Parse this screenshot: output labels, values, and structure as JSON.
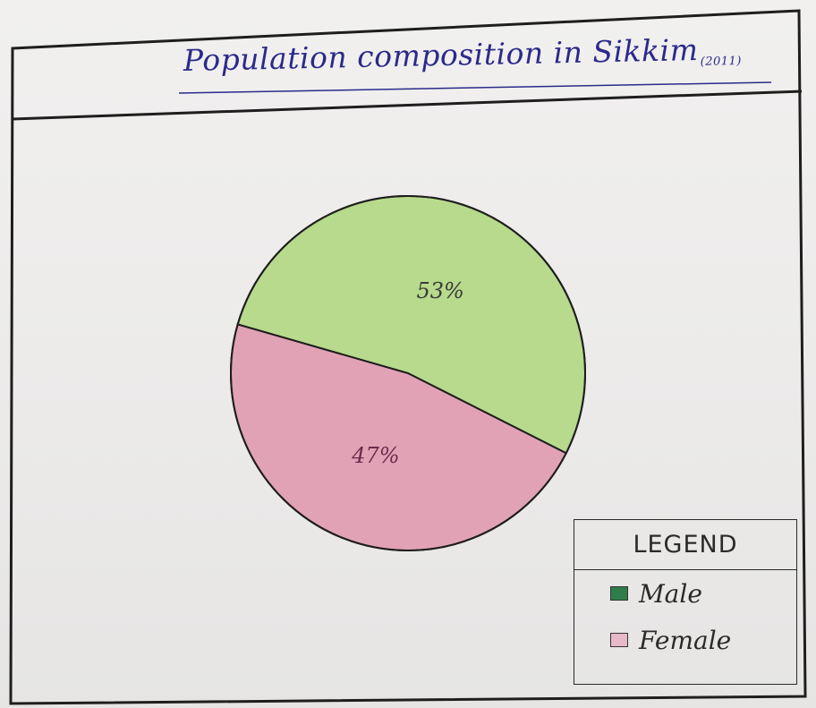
{
  "chart_data": {
    "type": "pie",
    "title": "Population composition in Sikkim",
    "year": "(2011)",
    "slices": [
      {
        "name": "Male",
        "value": 53,
        "label": "53%",
        "color": "#b7da8c"
      },
      {
        "name": "Female",
        "value": 47,
        "label": "47%",
        "color": "#e2a2b6"
      }
    ],
    "legend": {
      "title": "LEGEND",
      "position": "bottom-right",
      "items": [
        {
          "name": "Male",
          "color": "#2f7d4a"
        },
        {
          "name": "Female",
          "color": "#e9b8c8"
        }
      ]
    }
  }
}
